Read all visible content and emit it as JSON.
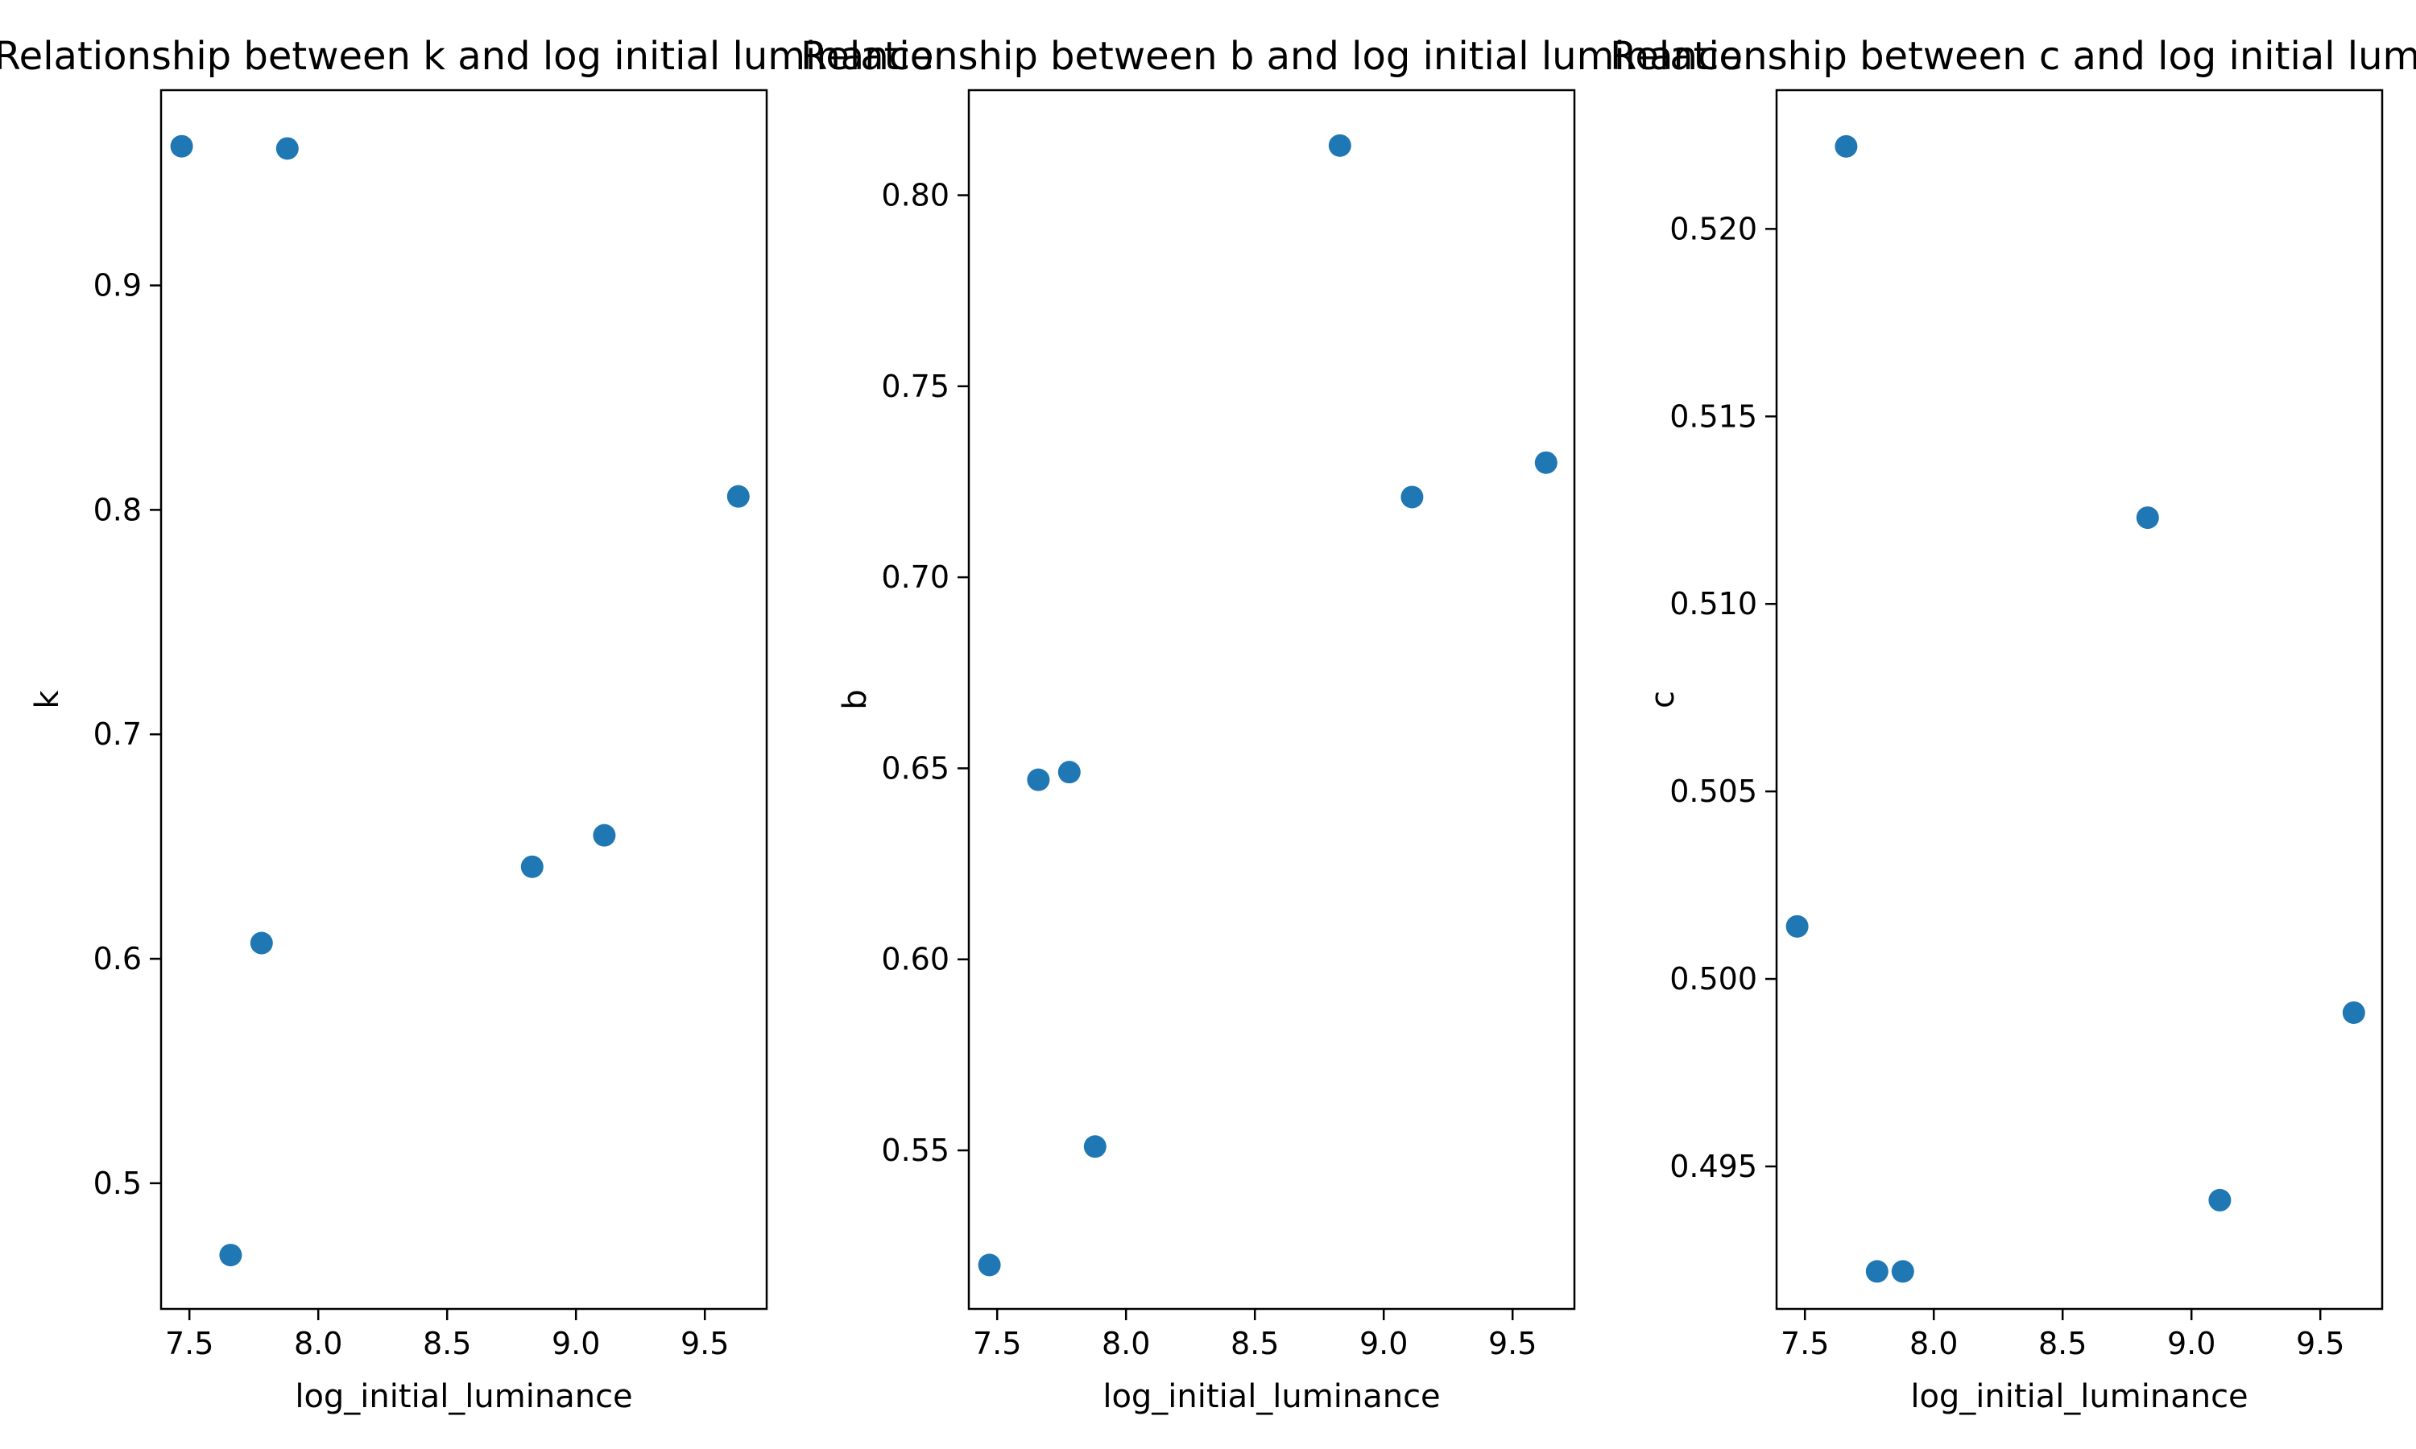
{
  "chart_data": [
    {
      "type": "scatter",
      "title": "Relationship between k and log initial luminance",
      "xlabel": "log_initial_luminance",
      "ylabel": "k",
      "xlim": [
        7.39,
        9.74
      ],
      "ylim": [
        0.444,
        0.987
      ],
      "xticks": [
        "7.5",
        "8.0",
        "8.5",
        "9.0",
        "9.5"
      ],
      "yticks": [
        "0.5",
        "0.6",
        "0.7",
        "0.8",
        "0.9"
      ],
      "grid": false,
      "color": "#1f77b4",
      "series": [
        {
          "x": [
            7.47,
            7.66,
            7.78,
            7.88,
            8.83,
            9.11,
            9.63
          ],
          "y": [
            0.962,
            0.468,
            0.607,
            0.961,
            0.641,
            0.655,
            0.806
          ]
        }
      ]
    },
    {
      "type": "scatter",
      "title": "Relationship between b and log initial luminance",
      "xlabel": "log_initial_luminance",
      "ylabel": "b",
      "xlim": [
        7.39,
        9.74
      ],
      "ylim": [
        0.5085,
        0.8275
      ],
      "xticks": [
        "7.5",
        "8.0",
        "8.5",
        "9.0",
        "9.5"
      ],
      "yticks": [
        "0.55",
        "0.60",
        "0.65",
        "0.70",
        "0.75",
        "0.80"
      ],
      "grid": false,
      "color": "#1f77b4",
      "series": [
        {
          "x": [
            7.47,
            7.66,
            7.78,
            7.88,
            8.83,
            9.11,
            9.63
          ],
          "y": [
            0.52,
            0.647,
            0.649,
            0.551,
            0.813,
            0.721,
            0.73
          ]
        }
      ]
    },
    {
      "type": "scatter",
      "title": "Relationship between c and log initial luminance",
      "xlabel": "log_initial_luminance",
      "ylabel": "c",
      "xlim": [
        7.39,
        9.74
      ],
      "ylim": [
        0.4912,
        0.5237
      ],
      "xticks": [
        "7.5",
        "8.0",
        "8.5",
        "9.0",
        "9.5"
      ],
      "yticks": [
        "0.495",
        "0.500",
        "0.505",
        "0.510",
        "0.515",
        "0.520"
      ],
      "grid": false,
      "color": "#1f77b4",
      "series": [
        {
          "x": [
            7.47,
            7.66,
            7.78,
            7.88,
            8.83,
            9.11,
            9.63
          ],
          "y": [
            0.5014,
            0.5222,
            0.4922,
            0.4922,
            0.5123,
            0.4941,
            0.4991
          ]
        }
      ]
    }
  ]
}
